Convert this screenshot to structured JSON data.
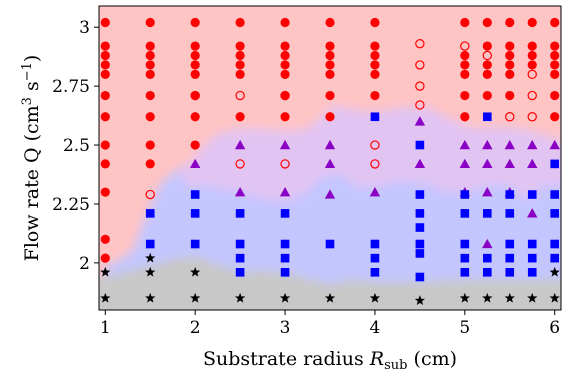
{
  "chart_data": {
    "type": "scatter",
    "title": "",
    "xlabel": "Substrate radius",
    "xlabel_symbol": "R",
    "xlabel_subscript": "sub",
    "xlabel_unit": "(cm)",
    "ylabel": "Flow rate Q (cm",
    "ylabel_sup1": "3",
    "ylabel_mid": " s",
    "ylabel_sup2": "−1",
    "ylabel_end": ")",
    "xlim": [
      0.93,
      6.07
    ],
    "ylim": [
      1.8,
      3.09
    ],
    "xticks": [
      1,
      2,
      3,
      4,
      5,
      6
    ],
    "yticks": [
      2,
      2.25,
      2.5,
      2.75,
      3
    ],
    "ytick_labels": [
      "2",
      "2.25",
      "2.5",
      "2.75",
      "3"
    ],
    "grid": false,
    "region_colors": {
      "red": "#ffc4c4",
      "purple": "#e2c4f3",
      "blue": "#c4c6ff",
      "gray": "#c8c8c8"
    },
    "regions": {
      "blue_top": [
        [
          1.0,
          1.99
        ],
        [
          1.1,
          2.0
        ],
        [
          1.3,
          2.05
        ],
        [
          1.45,
          2.2
        ],
        [
          1.6,
          2.33
        ],
        [
          1.8,
          2.4
        ],
        [
          1.95,
          2.43
        ],
        [
          2.1,
          2.5
        ],
        [
          2.25,
          2.55
        ],
        [
          2.5,
          2.57
        ],
        [
          2.75,
          2.57
        ],
        [
          3.0,
          2.56
        ],
        [
          3.25,
          2.57
        ],
        [
          3.55,
          2.67
        ],
        [
          3.8,
          2.65
        ],
        [
          4.0,
          2.64
        ],
        [
          4.3,
          2.66
        ],
        [
          4.6,
          2.66
        ],
        [
          4.85,
          2.61
        ],
        [
          5.1,
          2.57
        ],
        [
          5.35,
          2.58
        ],
        [
          5.6,
          2.57
        ],
        [
          5.85,
          2.55
        ],
        [
          6.07,
          2.52
        ]
      ],
      "purple_bottom": [
        [
          1.92,
          2.32
        ],
        [
          2.1,
          2.33
        ],
        [
          2.5,
          2.3
        ],
        [
          2.75,
          2.27
        ],
        [
          3.0,
          2.26
        ],
        [
          3.2,
          2.29
        ],
        [
          3.4,
          2.36
        ],
        [
          3.6,
          2.38
        ],
        [
          3.8,
          2.32
        ],
        [
          4.0,
          2.32
        ],
        [
          4.2,
          2.34
        ],
        [
          4.4,
          2.35
        ],
        [
          4.6,
          2.33
        ],
        [
          4.8,
          2.3
        ],
        [
          5.0,
          2.3
        ],
        [
          5.3,
          2.33
        ],
        [
          5.5,
          2.33
        ],
        [
          5.7,
          2.26
        ],
        [
          5.85,
          2.33
        ],
        [
          6.07,
          2.33
        ]
      ],
      "gray_top": [
        [
          1.0,
          1.94
        ],
        [
          1.2,
          1.96
        ],
        [
          1.5,
          1.99
        ],
        [
          1.8,
          2.02
        ],
        [
          2.0,
          2.03
        ],
        [
          2.2,
          2.0
        ],
        [
          2.5,
          1.96
        ],
        [
          2.75,
          1.97
        ],
        [
          3.0,
          1.96
        ],
        [
          3.3,
          1.93
        ],
        [
          3.5,
          1.91
        ],
        [
          3.75,
          1.93
        ],
        [
          4.0,
          1.92
        ],
        [
          4.5,
          1.92
        ],
        [
          5.0,
          1.93
        ],
        [
          5.5,
          1.93
        ],
        [
          6.07,
          1.93
        ]
      ]
    },
    "series": [
      {
        "marker": "red-filled-circle",
        "color": "#ff0000",
        "points": [
          [
            1,
            3.02
          ],
          [
            1,
            2.92
          ],
          [
            1,
            2.88
          ],
          [
            1,
            2.84
          ],
          [
            1,
            2.8
          ],
          [
            1,
            2.71
          ],
          [
            1,
            2.62
          ],
          [
            1,
            2.5
          ],
          [
            1,
            2.42
          ],
          [
            1,
            2.3
          ],
          [
            1,
            2.1
          ],
          [
            1,
            2.02
          ],
          [
            1.5,
            3.02
          ],
          [
            1.5,
            2.92
          ],
          [
            1.5,
            2.88
          ],
          [
            1.5,
            2.84
          ],
          [
            1.5,
            2.8
          ],
          [
            1.5,
            2.71
          ],
          [
            1.5,
            2.62
          ],
          [
            1.5,
            2.5
          ],
          [
            1.5,
            2.42
          ],
          [
            2,
            3.02
          ],
          [
            2,
            2.92
          ],
          [
            2,
            2.88
          ],
          [
            2,
            2.84
          ],
          [
            2,
            2.8
          ],
          [
            2,
            2.71
          ],
          [
            2,
            2.62
          ],
          [
            2,
            2.5
          ],
          [
            2.5,
            3.02
          ],
          [
            2.5,
            2.92
          ],
          [
            2.5,
            2.88
          ],
          [
            2.5,
            2.84
          ],
          [
            2.5,
            2.8
          ],
          [
            2.5,
            2.62
          ],
          [
            3,
            3.02
          ],
          [
            3,
            2.92
          ],
          [
            3,
            2.88
          ],
          [
            3,
            2.84
          ],
          [
            3,
            2.8
          ],
          [
            3,
            2.71
          ],
          [
            3,
            2.62
          ],
          [
            3.5,
            3.02
          ],
          [
            3.5,
            2.92
          ],
          [
            3.5,
            2.88
          ],
          [
            3.5,
            2.84
          ],
          [
            3.5,
            2.8
          ],
          [
            3.5,
            2.71
          ],
          [
            3.5,
            2.62
          ],
          [
            4,
            3.02
          ],
          [
            4,
            2.92
          ],
          [
            4,
            2.88
          ],
          [
            4,
            2.84
          ],
          [
            4,
            2.8
          ],
          [
            4,
            2.71
          ],
          [
            5,
            3.02
          ],
          [
            5,
            2.88
          ],
          [
            5,
            2.84
          ],
          [
            5,
            2.8
          ],
          [
            5,
            2.71
          ],
          [
            5,
            2.62
          ],
          [
            5.25,
            3.02
          ],
          [
            5.25,
            2.92
          ],
          [
            5.25,
            2.84
          ],
          [
            5.25,
            2.8
          ],
          [
            5.25,
            2.71
          ],
          [
            5.5,
            3.02
          ],
          [
            5.5,
            2.92
          ],
          [
            5.5,
            2.88
          ],
          [
            5.5,
            2.84
          ],
          [
            5.5,
            2.8
          ],
          [
            5.5,
            2.71
          ],
          [
            5.75,
            3.02
          ],
          [
            5.75,
            2.92
          ],
          [
            5.75,
            2.88
          ],
          [
            5.75,
            2.84
          ],
          [
            6,
            3.02
          ],
          [
            6,
            2.92
          ],
          [
            6,
            2.88
          ],
          [
            6,
            2.84
          ],
          [
            6,
            2.8
          ],
          [
            6,
            2.71
          ],
          [
            6,
            2.62
          ]
        ]
      },
      {
        "marker": "red-open-circle",
        "color": "#ff0000",
        "points": [
          [
            1.5,
            2.29
          ],
          [
            2,
            2.71
          ],
          [
            2.5,
            2.71
          ],
          [
            2.5,
            2.42
          ],
          [
            3,
            2.71
          ],
          [
            3,
            2.42
          ],
          [
            4,
            2.42
          ],
          [
            4,
            2.5
          ],
          [
            4.5,
            2.93
          ],
          [
            4.5,
            2.84
          ],
          [
            4.5,
            2.75
          ],
          [
            4.5,
            2.67
          ],
          [
            5,
            2.92
          ],
          [
            5.25,
            2.88
          ],
          [
            5.5,
            2.62
          ],
          [
            5.75,
            2.8
          ],
          [
            5.75,
            2.71
          ],
          [
            5.75,
            2.62
          ]
        ]
      },
      {
        "marker": "purple-triangle",
        "color": "#8a00c4",
        "points": [
          [
            2,
            2.42
          ],
          [
            2.5,
            2.5
          ],
          [
            2.5,
            2.3
          ],
          [
            3,
            2.5
          ],
          [
            3,
            2.3
          ],
          [
            3.5,
            2.5
          ],
          [
            3.5,
            2.42
          ],
          [
            3.5,
            2.29
          ],
          [
            4,
            2.3
          ],
          [
            4.5,
            2.6
          ],
          [
            4.5,
            2.42
          ],
          [
            5,
            2.5
          ],
          [
            5,
            2.42
          ],
          [
            5,
            2.3
          ],
          [
            5.25,
            2.5
          ],
          [
            5.25,
            2.42
          ],
          [
            5.25,
            2.3
          ],
          [
            5.25,
            2.08
          ],
          [
            5.5,
            2.5
          ],
          [
            5.5,
            2.42
          ],
          [
            5.5,
            2.3
          ],
          [
            5.75,
            2.5
          ],
          [
            5.75,
            2.42
          ],
          [
            5.75,
            2.21
          ],
          [
            6,
            2.5
          ]
        ]
      },
      {
        "marker": "blue-square",
        "color": "#0000ff",
        "points": [
          [
            1.5,
            2.21
          ],
          [
            1.5,
            2.08
          ],
          [
            2,
            2.29
          ],
          [
            2,
            2.21
          ],
          [
            2,
            2.08
          ],
          [
            2.5,
            2.21
          ],
          [
            2.5,
            2.08
          ],
          [
            2.5,
            2.02
          ],
          [
            2.5,
            1.96
          ],
          [
            3,
            2.21
          ],
          [
            3,
            2.08
          ],
          [
            3,
            2.02
          ],
          [
            3,
            1.96
          ],
          [
            3.5,
            2.08
          ],
          [
            4,
            2.08
          ],
          [
            4,
            2.02
          ],
          [
            4,
            1.96
          ],
          [
            4,
            2.62
          ],
          [
            4.5,
            2.5
          ],
          [
            4.5,
            2.29
          ],
          [
            4.5,
            2.21
          ],
          [
            4.5,
            2.15
          ],
          [
            4.5,
            2.08
          ],
          [
            4.5,
            2.04
          ],
          [
            4.5,
            1.94
          ],
          [
            5,
            2.29
          ],
          [
            5,
            2.21
          ],
          [
            5,
            2.08
          ],
          [
            5,
            2.02
          ],
          [
            5,
            1.96
          ],
          [
            5.25,
            2.62
          ],
          [
            5.25,
            2.21
          ],
          [
            5.25,
            2.02
          ],
          [
            5.25,
            1.96
          ],
          [
            5.5,
            2.29
          ],
          [
            5.5,
            2.21
          ],
          [
            5.5,
            2.08
          ],
          [
            5.5,
            2.02
          ],
          [
            5.5,
            1.96
          ],
          [
            5.75,
            2.29
          ],
          [
            5.75,
            2.08
          ],
          [
            5.75,
            2.02
          ],
          [
            5.75,
            1.96
          ],
          [
            6,
            2.42
          ],
          [
            6,
            2.29
          ],
          [
            6,
            2.21
          ],
          [
            6,
            2.08
          ],
          [
            6,
            2.02
          ]
        ]
      },
      {
        "marker": "black-star",
        "color": "#000000",
        "points": [
          [
            1,
            1.96
          ],
          [
            1,
            1.85
          ],
          [
            1.5,
            2.02
          ],
          [
            1.5,
            1.96
          ],
          [
            1.5,
            1.85
          ],
          [
            2,
            1.96
          ],
          [
            2,
            1.85
          ],
          [
            2.5,
            1.85
          ],
          [
            3,
            1.85
          ],
          [
            3.5,
            1.85
          ],
          [
            4,
            1.85
          ],
          [
            4.5,
            1.84
          ],
          [
            5,
            1.85
          ],
          [
            5.25,
            1.85
          ],
          [
            5.5,
            1.85
          ],
          [
            5.75,
            1.85
          ],
          [
            6,
            1.96
          ],
          [
            6,
            1.85
          ]
        ]
      }
    ]
  }
}
